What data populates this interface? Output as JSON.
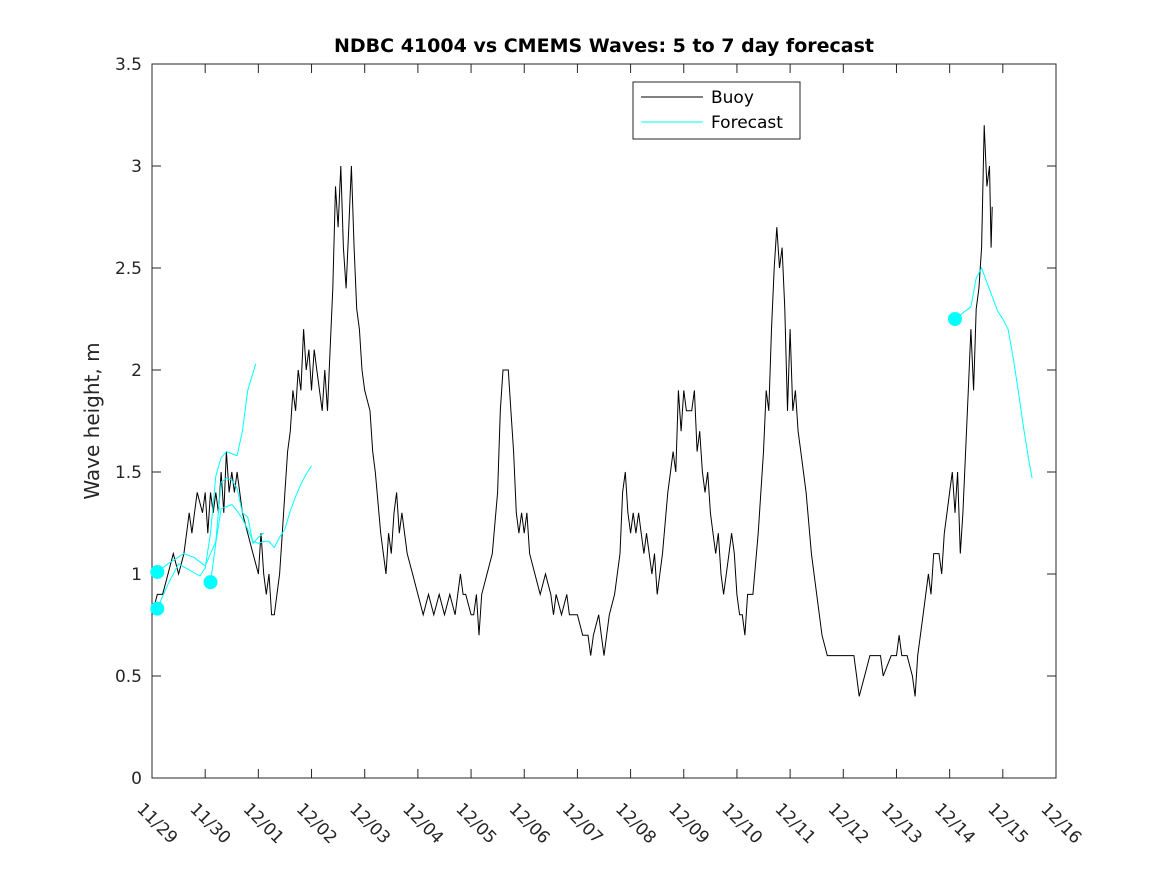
{
  "chart_data": {
    "type": "line",
    "title": "NDBC 41004 vs CMEMS Waves: 5 to 7 day forecast",
    "xlabel": "",
    "ylabel": "Wave height, m",
    "xlim": [
      "11/29 00:00",
      "12/16 00:00"
    ],
    "ylim": [
      0,
      3.5
    ],
    "x_ticks": [
      "11/29",
      "11/30",
      "12/01",
      "12/02",
      "12/03",
      "12/04",
      "12/05",
      "12/06",
      "12/07",
      "12/08",
      "12/09",
      "12/10",
      "12/11",
      "12/12",
      "12/13",
      "12/14",
      "12/15",
      "12/16"
    ],
    "y_ticks": [
      "0",
      "0.5",
      "1",
      "1.5",
      "2",
      "2.5",
      "3",
      "3.5"
    ],
    "grid": false,
    "legend": {
      "placement": "top-center",
      "entries": [
        "Buoy",
        "Forecast"
      ]
    },
    "colors": {
      "buoy": "#000000",
      "forecast": "#00ffff"
    },
    "series": [
      {
        "name": "Buoy",
        "time_unit": "days after 11/29 00:00",
        "points": [
          [
            0.0,
            0.8
          ],
          [
            0.1,
            0.9
          ],
          [
            0.2,
            0.9
          ],
          [
            0.3,
            1.0
          ],
          [
            0.4,
            1.1
          ],
          [
            0.5,
            1.0
          ],
          [
            0.6,
            1.1
          ],
          [
            0.65,
            1.2
          ],
          [
            0.7,
            1.3
          ],
          [
            0.75,
            1.2
          ],
          [
            0.8,
            1.3
          ],
          [
            0.85,
            1.4
          ],
          [
            0.95,
            1.3
          ],
          [
            1.0,
            1.4
          ],
          [
            1.05,
            1.2
          ],
          [
            1.1,
            1.4
          ],
          [
            1.15,
            1.3
          ],
          [
            1.2,
            1.4
          ],
          [
            1.25,
            1.3
          ],
          [
            1.3,
            1.5
          ],
          [
            1.35,
            1.3
          ],
          [
            1.4,
            1.6
          ],
          [
            1.45,
            1.4
          ],
          [
            1.5,
            1.5
          ],
          [
            1.55,
            1.4
          ],
          [
            1.6,
            1.5
          ],
          [
            1.7,
            1.3
          ],
          [
            1.8,
            1.2
          ],
          [
            1.9,
            1.1
          ],
          [
            2.0,
            1.0
          ],
          [
            2.05,
            1.2
          ],
          [
            2.1,
            1.0
          ],
          [
            2.15,
            0.9
          ],
          [
            2.2,
            1.0
          ],
          [
            2.25,
            0.8
          ],
          [
            2.3,
            0.8
          ],
          [
            2.4,
            1.0
          ],
          [
            2.45,
            1.2
          ],
          [
            2.5,
            1.4
          ],
          [
            2.55,
            1.6
          ],
          [
            2.6,
            1.7
          ],
          [
            2.65,
            1.9
          ],
          [
            2.7,
            1.8
          ],
          [
            2.75,
            2.0
          ],
          [
            2.8,
            1.9
          ],
          [
            2.85,
            2.2
          ],
          [
            2.9,
            2.0
          ],
          [
            2.95,
            2.1
          ],
          [
            3.0,
            1.9
          ],
          [
            3.05,
            2.1
          ],
          [
            3.1,
            2.0
          ],
          [
            3.15,
            1.9
          ],
          [
            3.2,
            1.8
          ],
          [
            3.25,
            2.0
          ],
          [
            3.3,
            1.8
          ],
          [
            3.35,
            2.1
          ],
          [
            3.4,
            2.4
          ],
          [
            3.45,
            2.9
          ],
          [
            3.5,
            2.7
          ],
          [
            3.55,
            3.0
          ],
          [
            3.6,
            2.6
          ],
          [
            3.65,
            2.4
          ],
          [
            3.7,
            2.7
          ],
          [
            3.75,
            3.0
          ],
          [
            3.8,
            2.6
          ],
          [
            3.85,
            2.3
          ],
          [
            3.9,
            2.2
          ],
          [
            3.95,
            2.0
          ],
          [
            4.0,
            1.9
          ],
          [
            4.1,
            1.8
          ],
          [
            4.15,
            1.6
          ],
          [
            4.2,
            1.5
          ],
          [
            4.3,
            1.2
          ],
          [
            4.4,
            1.0
          ],
          [
            4.45,
            1.2
          ],
          [
            4.5,
            1.1
          ],
          [
            4.55,
            1.3
          ],
          [
            4.6,
            1.4
          ],
          [
            4.65,
            1.2
          ],
          [
            4.7,
            1.3
          ],
          [
            4.8,
            1.1
          ],
          [
            4.9,
            1.0
          ],
          [
            5.0,
            0.9
          ],
          [
            5.1,
            0.8
          ],
          [
            5.2,
            0.9
          ],
          [
            5.3,
            0.8
          ],
          [
            5.4,
            0.9
          ],
          [
            5.5,
            0.8
          ],
          [
            5.6,
            0.9
          ],
          [
            5.7,
            0.8
          ],
          [
            5.8,
            1.0
          ],
          [
            5.85,
            0.9
          ],
          [
            5.9,
            0.9
          ],
          [
            6.0,
            0.8
          ],
          [
            6.05,
            0.8
          ],
          [
            6.1,
            0.9
          ],
          [
            6.15,
            0.7
          ],
          [
            6.2,
            0.9
          ],
          [
            6.3,
            1.0
          ],
          [
            6.4,
            1.1
          ],
          [
            6.5,
            1.4
          ],
          [
            6.55,
            1.8
          ],
          [
            6.6,
            2.0
          ],
          [
            6.7,
            2.0
          ],
          [
            6.75,
            1.8
          ],
          [
            6.8,
            1.6
          ],
          [
            6.85,
            1.3
          ],
          [
            6.9,
            1.2
          ],
          [
            6.95,
            1.3
          ],
          [
            7.0,
            1.2
          ],
          [
            7.05,
            1.3
          ],
          [
            7.1,
            1.1
          ],
          [
            7.2,
            1.0
          ],
          [
            7.3,
            0.9
          ],
          [
            7.4,
            1.0
          ],
          [
            7.5,
            0.9
          ],
          [
            7.55,
            0.8
          ],
          [
            7.6,
            0.9
          ],
          [
            7.7,
            0.8
          ],
          [
            7.8,
            0.9
          ],
          [
            7.85,
            0.8
          ],
          [
            7.9,
            0.8
          ],
          [
            8.0,
            0.8
          ],
          [
            8.1,
            0.7
          ],
          [
            8.2,
            0.7
          ],
          [
            8.25,
            0.6
          ],
          [
            8.3,
            0.7
          ],
          [
            8.4,
            0.8
          ],
          [
            8.45,
            0.7
          ],
          [
            8.5,
            0.6
          ],
          [
            8.6,
            0.8
          ],
          [
            8.7,
            0.9
          ],
          [
            8.8,
            1.1
          ],
          [
            8.85,
            1.4
          ],
          [
            8.9,
            1.5
          ],
          [
            8.95,
            1.3
          ],
          [
            9.0,
            1.2
          ],
          [
            9.05,
            1.3
          ],
          [
            9.1,
            1.2
          ],
          [
            9.15,
            1.3
          ],
          [
            9.2,
            1.2
          ],
          [
            9.25,
            1.1
          ],
          [
            9.3,
            1.2
          ],
          [
            9.35,
            1.1
          ],
          [
            9.4,
            1.0
          ],
          [
            9.45,
            1.1
          ],
          [
            9.5,
            0.9
          ],
          [
            9.6,
            1.1
          ],
          [
            9.7,
            1.4
          ],
          [
            9.75,
            1.5
          ],
          [
            9.8,
            1.6
          ],
          [
            9.85,
            1.5
          ],
          [
            9.9,
            1.9
          ],
          [
            9.95,
            1.7
          ],
          [
            10.0,
            1.9
          ],
          [
            10.05,
            1.8
          ],
          [
            10.15,
            1.8
          ],
          [
            10.2,
            1.9
          ],
          [
            10.25,
            1.6
          ],
          [
            10.3,
            1.7
          ],
          [
            10.35,
            1.5
          ],
          [
            10.4,
            1.4
          ],
          [
            10.45,
            1.5
          ],
          [
            10.5,
            1.3
          ],
          [
            10.55,
            1.2
          ],
          [
            10.6,
            1.1
          ],
          [
            10.65,
            1.2
          ],
          [
            10.7,
            1.0
          ],
          [
            10.75,
            0.9
          ],
          [
            10.85,
            1.1
          ],
          [
            10.9,
            1.2
          ],
          [
            10.95,
            1.1
          ],
          [
            11.0,
            0.9
          ],
          [
            11.05,
            0.8
          ],
          [
            11.1,
            0.8
          ],
          [
            11.15,
            0.7
          ],
          [
            11.2,
            0.9
          ],
          [
            11.3,
            0.9
          ],
          [
            11.4,
            1.2
          ],
          [
            11.5,
            1.6
          ],
          [
            11.55,
            1.9
          ],
          [
            11.6,
            1.8
          ],
          [
            11.65,
            2.2
          ],
          [
            11.7,
            2.5
          ],
          [
            11.75,
            2.7
          ],
          [
            11.8,
            2.5
          ],
          [
            11.85,
            2.6
          ],
          [
            11.9,
            2.3
          ],
          [
            11.95,
            1.8
          ],
          [
            12.0,
            2.2
          ],
          [
            12.05,
            1.8
          ],
          [
            12.1,
            1.9
          ],
          [
            12.15,
            1.7
          ],
          [
            12.2,
            1.6
          ],
          [
            12.3,
            1.4
          ],
          [
            12.4,
            1.1
          ],
          [
            12.5,
            0.9
          ],
          [
            12.6,
            0.7
          ],
          [
            12.7,
            0.6
          ],
          [
            12.8,
            0.6
          ],
          [
            13.0,
            0.6
          ],
          [
            13.2,
            0.6
          ],
          [
            13.25,
            0.5
          ],
          [
            13.3,
            0.4
          ],
          [
            13.4,
            0.5
          ],
          [
            13.5,
            0.6
          ],
          [
            13.7,
            0.6
          ],
          [
            13.75,
            0.5
          ],
          [
            13.9,
            0.6
          ],
          [
            14.0,
            0.6
          ],
          [
            14.05,
            0.7
          ],
          [
            14.1,
            0.6
          ],
          [
            14.2,
            0.6
          ],
          [
            14.3,
            0.5
          ],
          [
            14.35,
            0.4
          ],
          [
            14.4,
            0.6
          ],
          [
            14.5,
            0.8
          ],
          [
            14.6,
            1.0
          ],
          [
            14.65,
            0.9
          ],
          [
            14.7,
            1.1
          ],
          [
            14.8,
            1.1
          ],
          [
            14.85,
            1.0
          ],
          [
            14.9,
            1.2
          ],
          [
            14.95,
            1.3
          ],
          [
            15.0,
            1.4
          ],
          [
            15.05,
            1.5
          ],
          [
            15.1,
            1.3
          ],
          [
            15.15,
            1.5
          ],
          [
            15.2,
            1.1
          ],
          [
            15.25,
            1.3
          ],
          [
            15.3,
            1.6
          ],
          [
            15.35,
            1.9
          ],
          [
            15.4,
            2.2
          ],
          [
            15.45,
            1.9
          ],
          [
            15.5,
            2.3
          ],
          [
            15.55,
            2.4
          ],
          [
            15.6,
            2.6
          ],
          [
            15.65,
            3.2
          ],
          [
            15.7,
            2.9
          ],
          [
            15.75,
            3.0
          ],
          [
            15.78,
            2.6
          ],
          [
            15.8,
            2.8
          ]
        ]
      },
      {
        "name": "Forecast",
        "time_unit": "days after 11/29 00:00",
        "segments": [
          [
            [
              0.1,
              1.01
            ],
            [
              0.3,
              1.05
            ],
            [
              0.6,
              1.1
            ],
            [
              0.8,
              1.08
            ],
            [
              1.0,
              1.04
            ],
            [
              1.2,
              1.16
            ],
            [
              1.3,
              1.45
            ],
            [
              1.4,
              1.47
            ],
            [
              1.5,
              1.46
            ],
            [
              1.6,
              1.42
            ],
            [
              1.7,
              1.3
            ],
            [
              1.8,
              1.28
            ],
            [
              1.9,
              1.15
            ],
            [
              2.0,
              1.18
            ],
            [
              2.1,
              1.2
            ]
          ],
          [
            [
              0.1,
              0.83
            ],
            [
              0.3,
              0.95
            ],
            [
              0.5,
              1.05
            ],
            [
              0.7,
              1.02
            ],
            [
              0.9,
              0.99
            ],
            [
              1.0,
              1.03
            ],
            [
              1.1,
              1.2
            ],
            [
              1.2,
              1.48
            ],
            [
              1.3,
              1.57
            ],
            [
              1.4,
              1.6
            ],
            [
              1.6,
              1.58
            ],
            [
              1.7,
              1.7
            ],
            [
              1.8,
              1.9
            ],
            [
              1.95,
              2.03
            ]
          ],
          [
            [
              1.1,
              0.96
            ],
            [
              1.2,
              1.15
            ],
            [
              1.3,
              1.32
            ],
            [
              1.5,
              1.34
            ],
            [
              1.6,
              1.31
            ],
            [
              1.7,
              1.27
            ],
            [
              1.8,
              1.22
            ],
            [
              1.9,
              1.16
            ],
            [
              2.0,
              1.15
            ],
            [
              2.1,
              1.16
            ],
            [
              2.2,
              1.16
            ],
            [
              2.3,
              1.13
            ],
            [
              2.4,
              1.18
            ],
            [
              2.5,
              1.22
            ],
            [
              2.6,
              1.31
            ],
            [
              2.7,
              1.38
            ],
            [
              2.8,
              1.44
            ],
            [
              2.9,
              1.49
            ],
            [
              3.0,
              1.53
            ]
          ],
          [
            [
              15.1,
              2.25
            ],
            [
              15.4,
              2.31
            ],
            [
              15.5,
              2.45
            ],
            [
              15.6,
              2.5
            ],
            [
              15.7,
              2.43
            ],
            [
              15.8,
              2.36
            ],
            [
              15.9,
              2.29
            ],
            [
              16.0,
              2.25
            ],
            [
              16.1,
              2.2
            ],
            [
              16.2,
              2.05
            ],
            [
              16.3,
              1.88
            ],
            [
              16.4,
              1.7
            ],
            [
              16.5,
              1.54
            ],
            [
              16.55,
              1.47
            ]
          ]
        ],
        "start_markers": [
          [
            0.1,
            1.01
          ],
          [
            0.1,
            0.83
          ],
          [
            1.1,
            0.96
          ],
          [
            15.1,
            2.25
          ]
        ]
      }
    ]
  }
}
